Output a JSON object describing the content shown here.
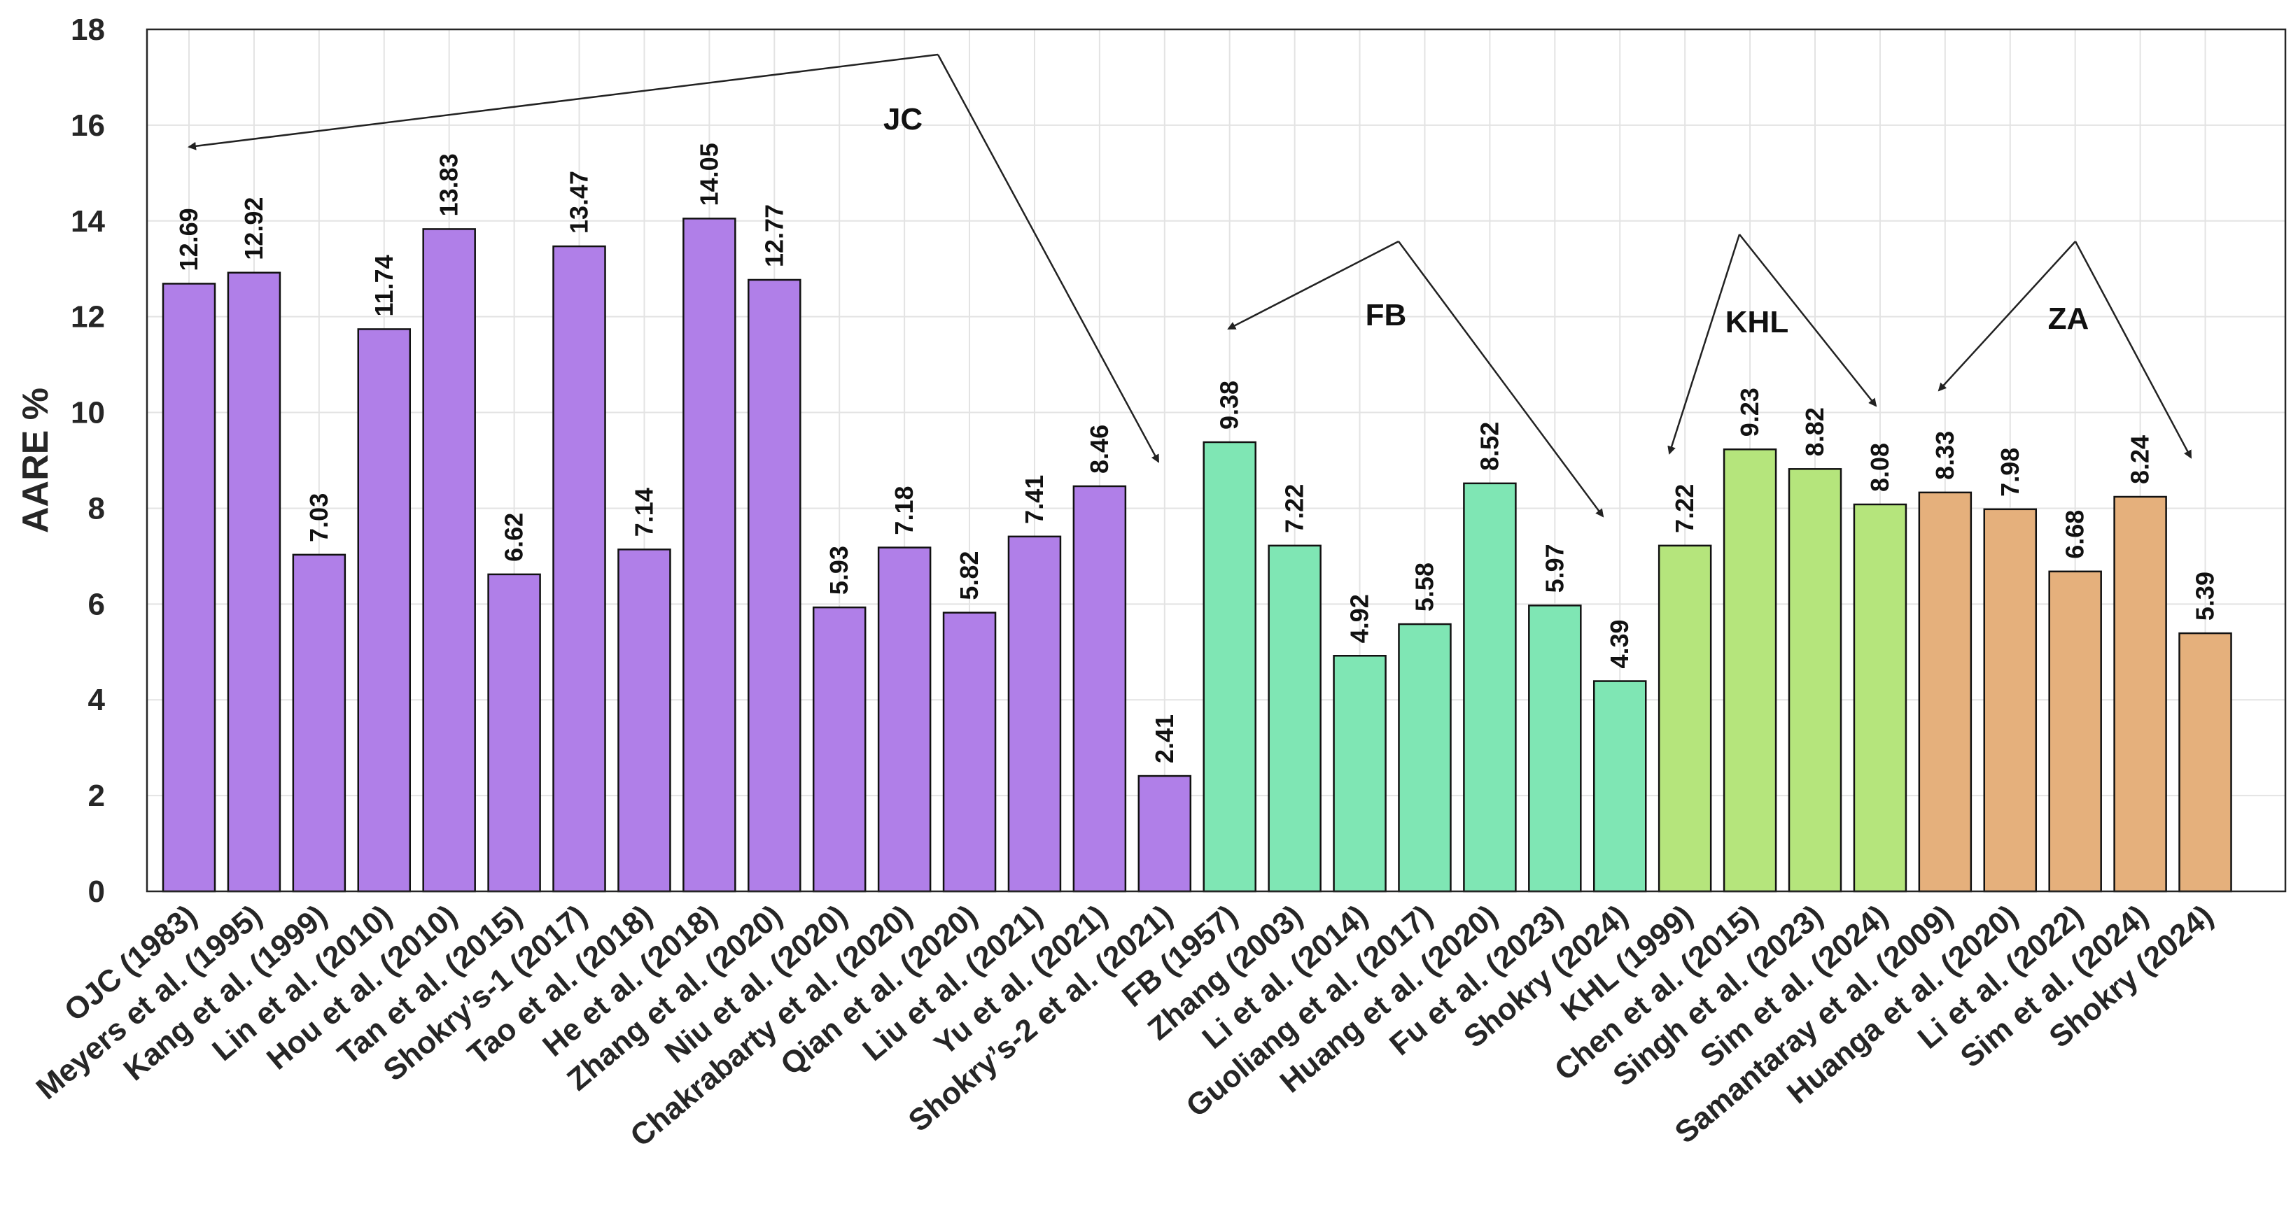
{
  "chart_data": {
    "type": "bar",
    "ylabel": "AARE %",
    "xlabel": "",
    "ylim": [
      0,
      18
    ],
    "yticks": [
      0,
      2,
      4,
      6,
      8,
      10,
      12,
      14,
      16,
      18
    ],
    "grid": true,
    "categories": [
      "OJC (1983)",
      "Meyers et al. (1995)",
      "Kang et al. (1999)",
      "Lin et al. (2010)",
      "Hou et al. (2010)",
      "Tan et al. (2015)",
      "Shokry’s-1 (2017)",
      "Tao et al. (2018)",
      "He et al. (2018)",
      "Zhang et al. (2020)",
      "Niu et al. (2020)",
      "Chakrabarty et al. (2020)",
      "Qian et al. (2020)",
      "Liu et al. (2021)",
      "Yu et al. (2021)",
      "Shokry’s-2 et al. (2021)",
      "FB (1957)",
      "Zhang (2003)",
      "Li et al. (2014)",
      "Guoliang et al. (2017)",
      "Huang et al. (2020)",
      "Fu et al. (2023)",
      "Shokry (2024)",
      "KHL (1999)",
      "Chen et al. (2015)",
      "Singh et al. (2023)",
      "Sim et al. (2024)",
      "Samantaray et al. (2009)",
      "Huanga et al. (2020)",
      "Li et al. (2022)",
      "Sim et al. (2024)",
      "Shokry (2024)"
    ],
    "values": [
      12.69,
      12.92,
      7.03,
      11.74,
      13.83,
      6.62,
      13.47,
      7.14,
      14.05,
      12.77,
      5.93,
      7.18,
      5.82,
      7.41,
      8.46,
      2.41,
      9.38,
      7.22,
      4.92,
      5.58,
      8.52,
      5.97,
      4.39,
      7.22,
      9.23,
      8.82,
      8.08,
      8.33,
      7.98,
      6.68,
      8.24,
      5.39
    ],
    "value_labels": [
      "12.69",
      "12.92",
      "7.03",
      "11.74",
      "13.83",
      "6.62",
      "13.47",
      "7.14",
      "14.05",
      "12.77",
      "5.93",
      "7.18",
      "5.82",
      "7.41",
      "8.46",
      "2.41",
      "9.38",
      "7.22",
      "4.92",
      "5.58",
      "8.52",
      "5.97",
      "4.39",
      "7.22",
      "9.23",
      "8.82",
      "8.08",
      "8.33",
      "7.98",
      "6.68",
      "8.24",
      "5.39"
    ],
    "groups": [
      {
        "name": "JC",
        "start": 0,
        "end": 15,
        "color": "#b07fe8"
      },
      {
        "name": "FB",
        "start": 16,
        "end": 22,
        "color": "#7fe6b4"
      },
      {
        "name": "KHL",
        "start": 23,
        "end": 26,
        "color": "#b5e57c"
      },
      {
        "name": "ZA",
        "start": 27,
        "end": 31,
        "color": "#e5b07c"
      }
    ]
  }
}
